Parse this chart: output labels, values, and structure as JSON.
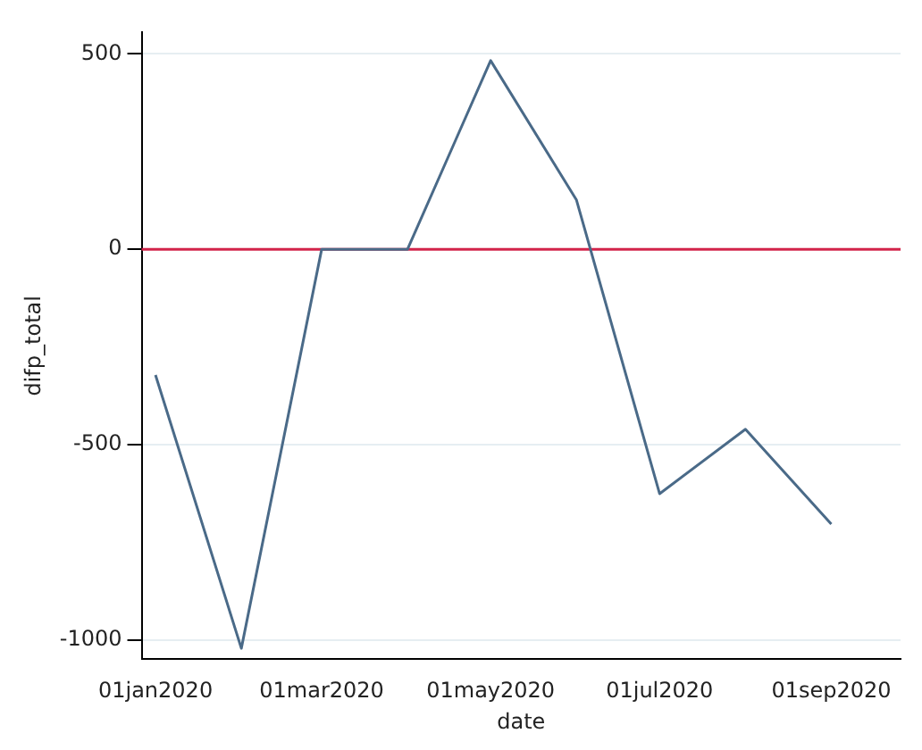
{
  "chart_data": {
    "type": "line",
    "xlabel": "date",
    "ylabel": "difp_total",
    "x": [
      "2020-01-01",
      "2020-02-01",
      "2020-03-01",
      "2020-04-01",
      "2020-05-01",
      "2020-06-01",
      "2020-07-01",
      "2020-08-01",
      "2020-09-01"
    ],
    "series": [
      {
        "color": "#4a6a88",
        "values": [
          -322,
          -1022,
          0,
          0,
          483,
          126,
          -626,
          -461,
          -704
        ]
      }
    ],
    "xlim": [
      "2019-12-27",
      "2020-09-26"
    ],
    "xticks": [
      {
        "value": "2020-01-01",
        "label": "01jan2020"
      },
      {
        "value": "2020-03-01",
        "label": "01mar2020"
      },
      {
        "value": "2020-05-01",
        "label": "01may2020"
      },
      {
        "value": "2020-07-01",
        "label": "01jul2020"
      },
      {
        "value": "2020-09-01",
        "label": "01sep2020"
      }
    ],
    "ylim": [
      -1050,
      555
    ],
    "yticks": [
      -1000,
      -500,
      0,
      500
    ],
    "ref_lines": [
      {
        "axis": "y",
        "value": 0,
        "color": "#d2234a"
      }
    ],
    "grid": "y",
    "legend": false,
    "marker": "none",
    "line_style": "solid"
  }
}
